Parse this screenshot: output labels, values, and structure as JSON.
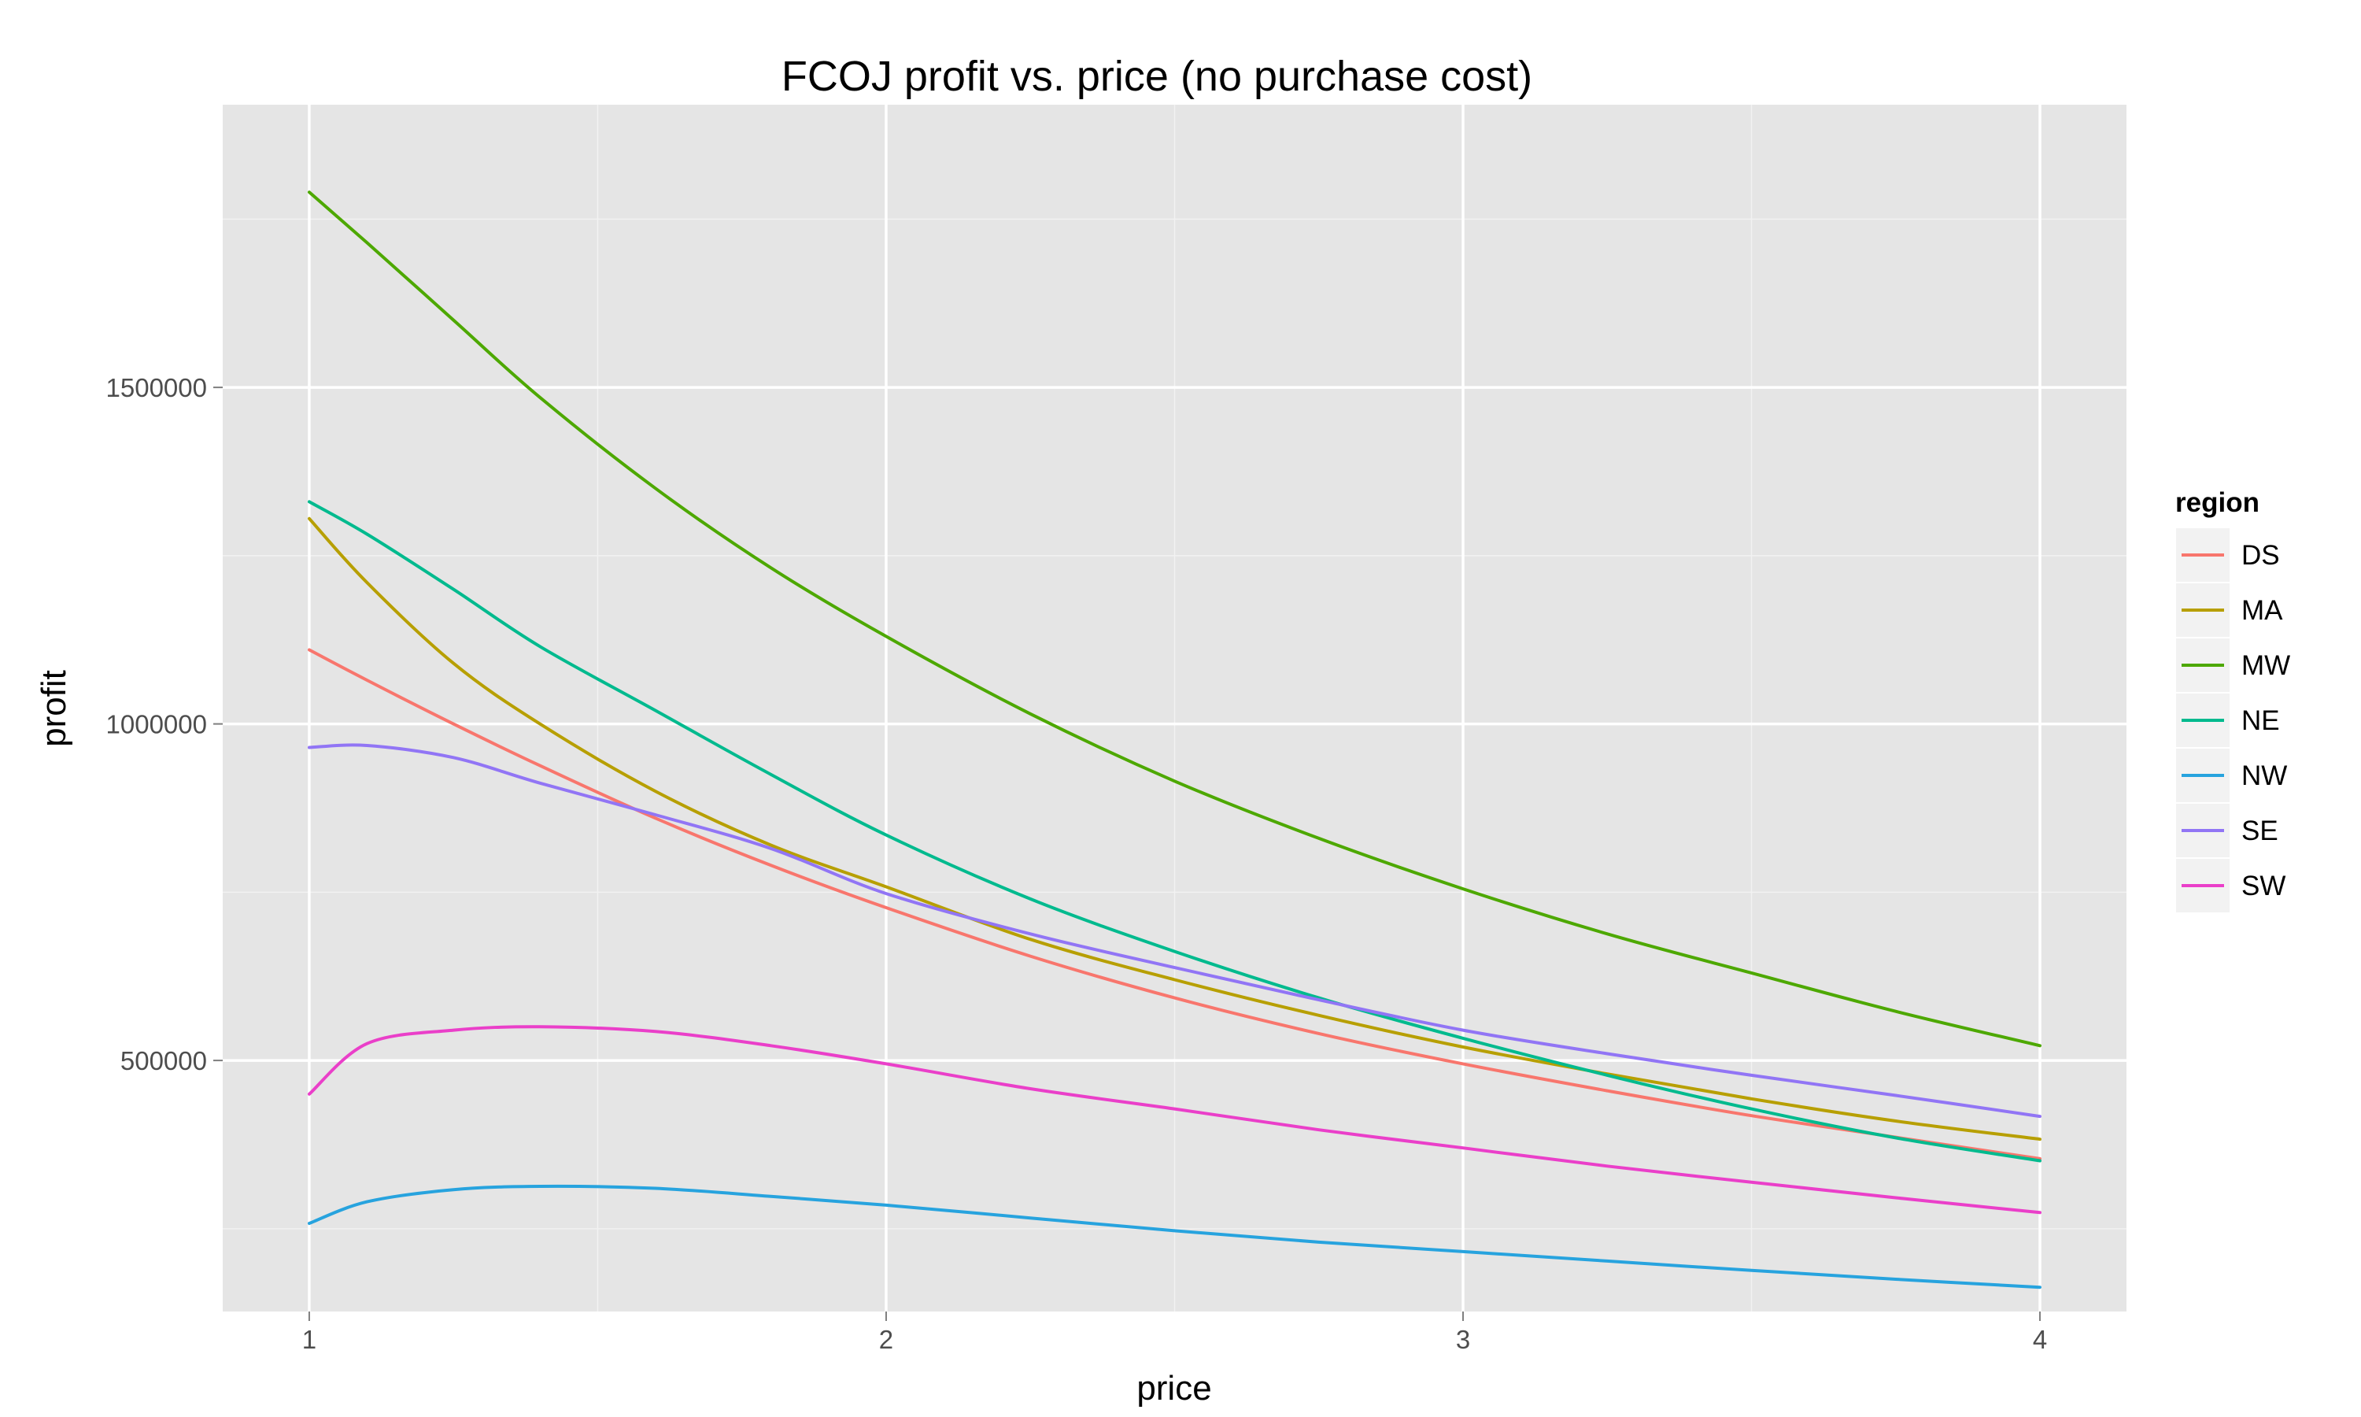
{
  "chart_data": {
    "type": "line",
    "title": "FCOJ profit vs. price (no purchase cost)",
    "xlabel": "price",
    "ylabel": "profit",
    "xlim": [
      0.85,
      4.15
    ],
    "ylim": [
      127000,
      1920000
    ],
    "x_ticks": [
      "1",
      "2",
      "3",
      "4"
    ],
    "y_ticks": [
      "500000",
      "1000000",
      "1500000"
    ],
    "x_tick_values": [
      1,
      2,
      3,
      4
    ],
    "y_tick_values": [
      500000,
      1000000,
      1500000
    ],
    "x": [
      1.0,
      1.1,
      1.25,
      1.4,
      1.6,
      1.8,
      2.0,
      2.25,
      2.5,
      2.75,
      3.0,
      3.25,
      3.5,
      3.75,
      4.0
    ],
    "legend": {
      "title": "region",
      "position": "right"
    },
    "grid": true,
    "background": "#e5e5e5",
    "series": [
      {
        "name": "DS",
        "color": "#f8766d",
        "values": [
          1110000,
          1065000,
          1000000,
          938000,
          860000,
          790000,
          727000,
          655000,
          593000,
          540000,
          495000,
          455000,
          418000,
          386000,
          354000
        ]
      },
      {
        "name": "MA",
        "color": "#b79f00",
        "values": [
          1305000,
          1210000,
          1090000,
          1000000,
          900000,
          820000,
          758000,
          680000,
          620000,
          567000,
          520000,
          480000,
          443000,
          410000,
          383000
        ]
      },
      {
        "name": "MW",
        "color": "#4da800",
        "values": [
          1790000,
          1715000,
          1600000,
          1485000,
          1350000,
          1232000,
          1130000,
          1015000,
          915000,
          830000,
          755000,
          688000,
          630000,
          573000,
          522000
        ]
      },
      {
        "name": "NE",
        "color": "#00ba8e",
        "values": [
          1330000,
          1282000,
          1200000,
          1115000,
          1020000,
          925000,
          835000,
          740000,
          662000,
          593000,
          533000,
          478000,
          428000,
          385000,
          351000
        ]
      },
      {
        "name": "NW",
        "color": "#27a3de",
        "values": [
          258000,
          290000,
          308000,
          313000,
          310000,
          298000,
          285000,
          266000,
          247000,
          230000,
          216000,
          202000,
          188000,
          175000,
          163000
        ]
      },
      {
        "name": "SE",
        "color": "#9175f5",
        "values": [
          965000,
          968000,
          950000,
          912000,
          865000,
          815000,
          748000,
          688000,
          638000,
          590000,
          545000,
          510000,
          478000,
          448000,
          417000
        ]
      },
      {
        "name": "SW",
        "color": "#ea3fc9",
        "values": [
          450000,
          525000,
          545000,
          550000,
          543000,
          522000,
          495000,
          458000,
          428000,
          397000,
          370000,
          343000,
          319000,
          296000,
          274000
        ]
      }
    ]
  }
}
